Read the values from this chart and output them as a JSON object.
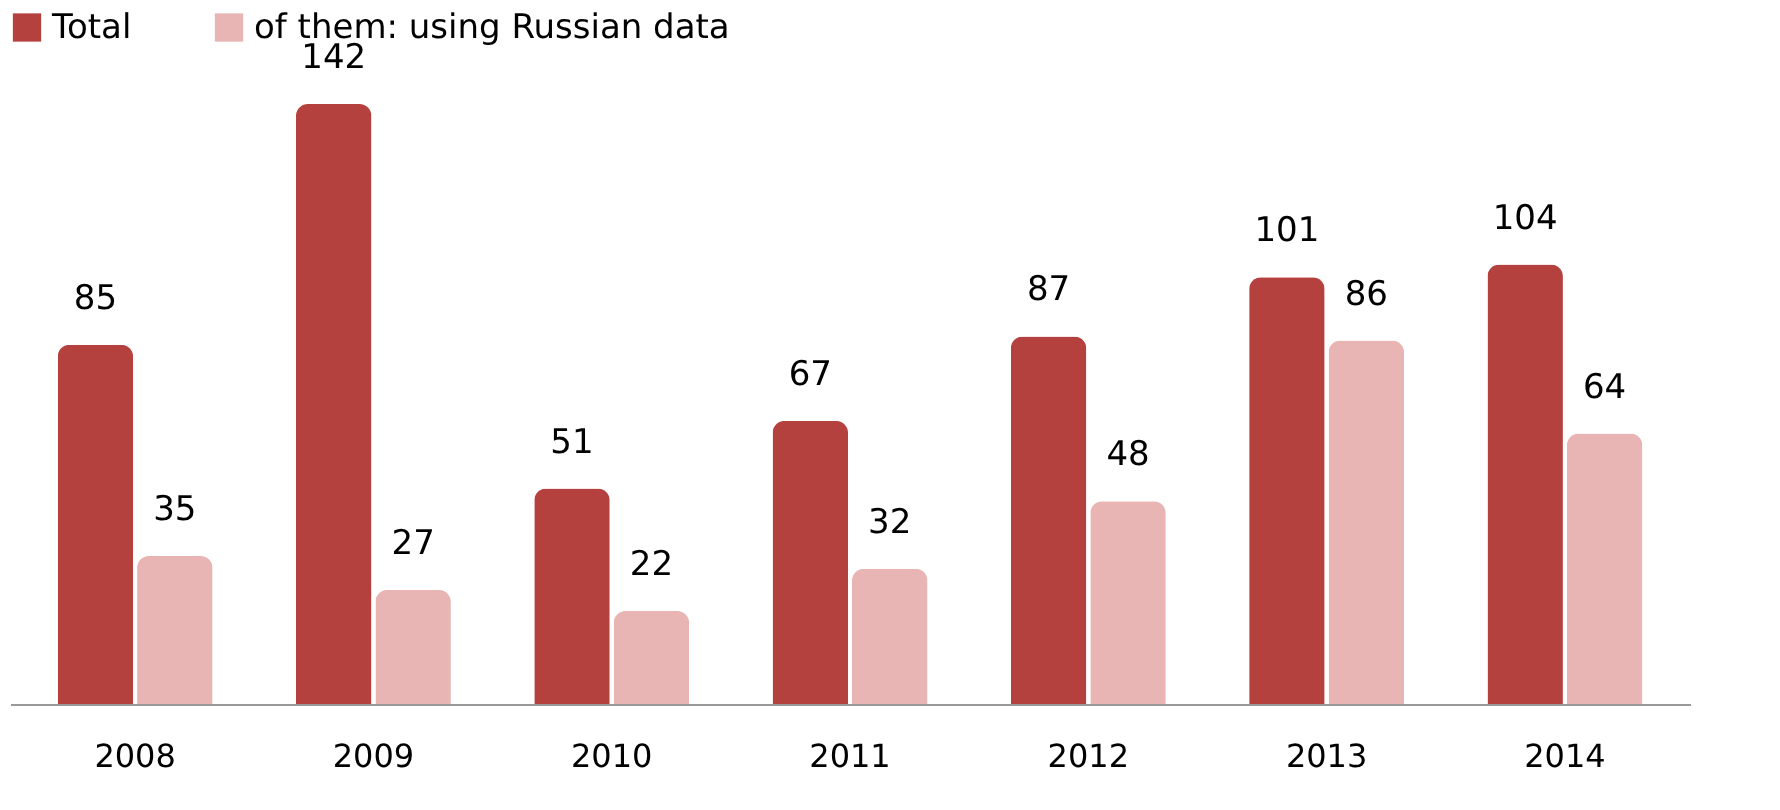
{
  "chart_data": {
    "type": "bar",
    "categories": [
      "2008",
      "2009",
      "2010",
      "2011",
      "2012",
      "2013",
      "2014"
    ],
    "series": [
      {
        "name": "Total",
        "color": "#b5413f",
        "values": [
          85,
          142,
          51,
          67,
          87,
          101,
          104
        ]
      },
      {
        "name": "of them: using Russian data",
        "color": "#e8b4b4",
        "values": [
          35,
          27,
          22,
          32,
          48,
          86,
          64
        ]
      }
    ],
    "data_labels": true,
    "legend": "top",
    "grid": false
  }
}
